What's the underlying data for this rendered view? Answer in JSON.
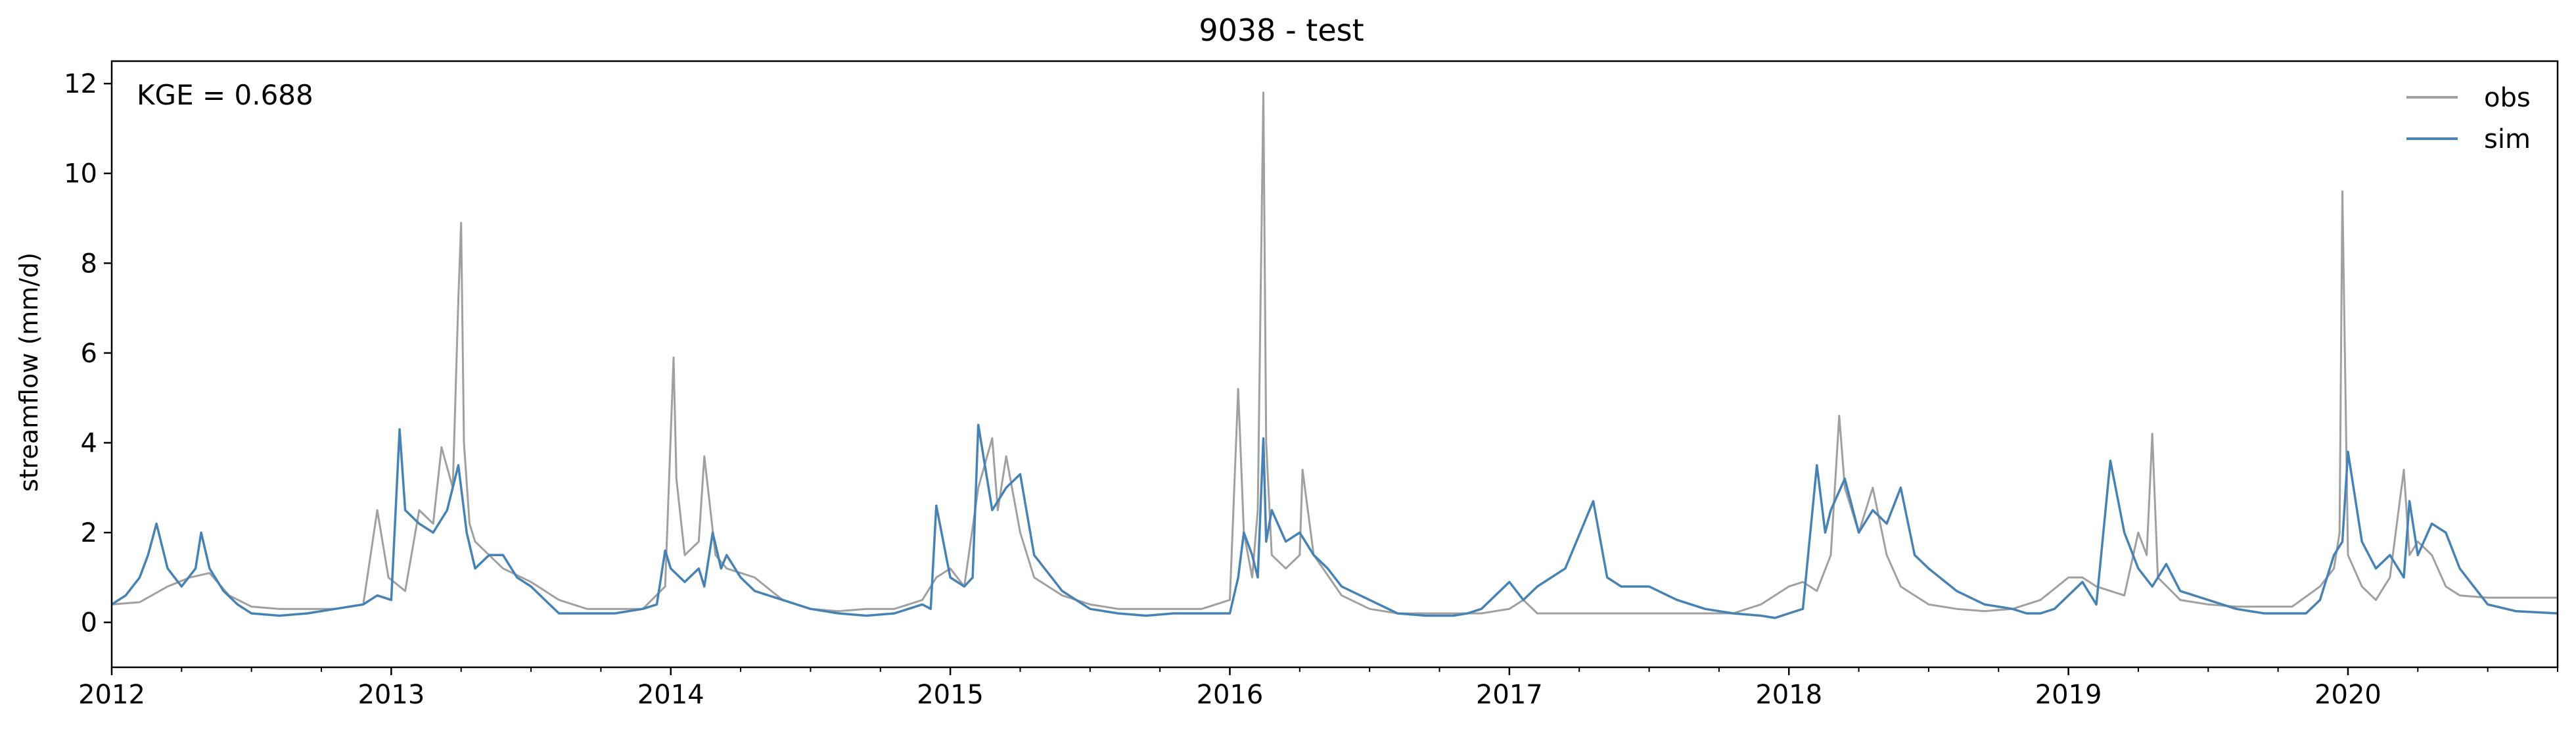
{
  "chart_data": {
    "type": "line",
    "title": "9038 - test",
    "xlabel": "",
    "ylabel": "streamflow (mm/d)",
    "annotation": "KGE = 0.688",
    "xlim": [
      2012.0,
      2020.75
    ],
    "ylim": [
      -1,
      12.5
    ],
    "x_ticks": [
      2012,
      2013,
      2014,
      2015,
      2016,
      2017,
      2018,
      2019,
      2020
    ],
    "x_tick_labels": [
      "2012",
      "2013",
      "2014",
      "2015",
      "2016",
      "2017",
      "2018",
      "2019",
      "2020"
    ],
    "y_ticks": [
      0,
      2,
      4,
      6,
      8,
      10,
      12
    ],
    "y_tick_labels": [
      "0",
      "2",
      "4",
      "6",
      "8",
      "10",
      "12"
    ],
    "legend": {
      "placement": "top-right",
      "entries": [
        "obs",
        "sim"
      ]
    },
    "series": [
      {
        "name": "obs",
        "color": "#a0a0a0",
        "x": [
          2012.0,
          2012.1,
          2012.2,
          2012.28,
          2012.35,
          2012.42,
          2012.5,
          2012.6,
          2012.7,
          2012.8,
          2012.9,
          2012.95,
          2012.99,
          2013.05,
          2013.1,
          2013.15,
          2013.18,
          2013.22,
          2013.24,
          2013.25,
          2013.26,
          2013.28,
          2013.3,
          2013.4,
          2013.5,
          2013.6,
          2013.7,
          2013.8,
          2013.9,
          2013.98,
          2014.01,
          2014.02,
          2014.05,
          2014.1,
          2014.12,
          2014.16,
          2014.2,
          2014.3,
          2014.4,
          2014.5,
          2014.6,
          2014.7,
          2014.8,
          2014.9,
          2014.95,
          2015.0,
          2015.05,
          2015.1,
          2015.15,
          2015.17,
          2015.2,
          2015.25,
          2015.3,
          2015.4,
          2015.5,
          2015.6,
          2015.7,
          2015.8,
          2015.9,
          2016.0,
          2016.03,
          2016.05,
          2016.08,
          2016.1,
          2016.12,
          2016.13,
          2016.15,
          2016.2,
          2016.25,
          2016.26,
          2016.3,
          2016.4,
          2016.5,
          2016.6,
          2016.7,
          2016.8,
          2016.9,
          2017.0,
          2017.05,
          2017.1,
          2017.2,
          2017.3,
          2017.4,
          2017.5,
          2017.6,
          2017.7,
          2017.8,
          2017.9,
          2018.0,
          2018.05,
          2018.1,
          2018.15,
          2018.18,
          2018.2,
          2018.25,
          2018.3,
          2018.35,
          2018.4,
          2018.5,
          2018.6,
          2018.7,
          2018.8,
          2018.9,
          2019.0,
          2019.05,
          2019.1,
          2019.2,
          2019.25,
          2019.28,
          2019.3,
          2019.32,
          2019.4,
          2019.5,
          2019.6,
          2019.7,
          2019.8,
          2019.9,
          2019.95,
          2019.97,
          2019.98,
          2020.0,
          2020.05,
          2020.1,
          2020.15,
          2020.2,
          2020.22,
          2020.25,
          2020.3,
          2020.35,
          2020.4,
          2020.5,
          2020.6,
          2020.75
        ],
        "values": [
          0.4,
          0.45,
          0.8,
          1.0,
          1.1,
          0.6,
          0.35,
          0.3,
          0.3,
          0.3,
          0.4,
          2.5,
          1.0,
          0.7,
          2.5,
          2.2,
          3.9,
          3.0,
          7.2,
          8.9,
          4.0,
          2.2,
          1.8,
          1.2,
          0.9,
          0.5,
          0.3,
          0.3,
          0.3,
          0.8,
          5.9,
          3.2,
          1.5,
          1.8,
          3.7,
          1.5,
          1.2,
          1.0,
          0.5,
          0.3,
          0.25,
          0.3,
          0.3,
          0.5,
          1.0,
          1.2,
          0.8,
          3.0,
          4.1,
          2.5,
          3.7,
          2.0,
          1.0,
          0.6,
          0.4,
          0.3,
          0.3,
          0.3,
          0.3,
          0.5,
          5.2,
          2.0,
          1.0,
          2.5,
          11.8,
          4.0,
          1.5,
          1.2,
          1.5,
          3.4,
          1.5,
          0.6,
          0.3,
          0.2,
          0.2,
          0.2,
          0.2,
          0.3,
          0.5,
          0.2,
          0.2,
          0.2,
          0.2,
          0.2,
          0.2,
          0.2,
          0.2,
          0.4,
          0.8,
          0.9,
          0.7,
          1.5,
          4.6,
          3.0,
          2.0,
          3.0,
          1.5,
          0.8,
          0.4,
          0.3,
          0.25,
          0.3,
          0.5,
          1.0,
          1.0,
          0.8,
          0.6,
          2.0,
          1.5,
          4.2,
          1.0,
          0.5,
          0.4,
          0.35,
          0.35,
          0.35,
          0.8,
          1.2,
          2.0,
          9.6,
          1.5,
          0.8,
          0.5,
          1.0,
          3.4,
          1.5,
          1.8,
          1.5,
          0.8,
          0.6,
          0.55,
          0.55,
          0.55
        ]
      },
      {
        "name": "sim",
        "color": "#4682b4",
        "x": [
          2012.0,
          2012.05,
          2012.1,
          2012.13,
          2012.16,
          2012.2,
          2012.25,
          2012.3,
          2012.32,
          2012.35,
          2012.4,
          2012.45,
          2012.5,
          2012.6,
          2012.7,
          2012.8,
          2012.9,
          2012.95,
          2013.0,
          2013.03,
          2013.05,
          2013.1,
          2013.15,
          2013.2,
          2013.24,
          2013.27,
          2013.3,
          2013.35,
          2013.4,
          2013.45,
          2013.5,
          2013.55,
          2013.6,
          2013.7,
          2013.8,
          2013.9,
          2013.95,
          2013.98,
          2014.0,
          2014.05,
          2014.1,
          2014.12,
          2014.15,
          2014.18,
          2014.2,
          2014.25,
          2014.3,
          2014.4,
          2014.5,
          2014.6,
          2014.7,
          2014.8,
          2014.85,
          2014.9,
          2014.93,
          2014.95,
          2015.0,
          2015.05,
          2015.08,
          2015.1,
          2015.15,
          2015.2,
          2015.25,
          2015.3,
          2015.4,
          2015.5,
          2015.6,
          2015.7,
          2015.8,
          2015.9,
          2016.0,
          2016.03,
          2016.05,
          2016.08,
          2016.1,
          2016.12,
          2016.13,
          2016.15,
          2016.2,
          2016.25,
          2016.3,
          2016.35,
          2016.4,
          2016.5,
          2016.6,
          2016.7,
          2016.8,
          2016.85,
          2016.9,
          2016.95,
          2017.0,
          2017.05,
          2017.1,
          2017.15,
          2017.2,
          2017.3,
          2017.35,
          2017.4,
          2017.5,
          2017.6,
          2017.7,
          2017.8,
          2017.9,
          2017.95,
          2018.0,
          2018.05,
          2018.1,
          2018.13,
          2018.15,
          2018.2,
          2018.25,
          2018.3,
          2018.35,
          2018.4,
          2018.45,
          2018.5,
          2018.6,
          2018.7,
          2018.8,
          2018.85,
          2018.9,
          2018.95,
          2019.0,
          2019.05,
          2019.08,
          2019.1,
          2019.15,
          2019.2,
          2019.25,
          2019.3,
          2019.35,
          2019.4,
          2019.5,
          2019.6,
          2019.7,
          2019.8,
          2019.85,
          2019.9,
          2019.95,
          2019.98,
          2020.0,
          2020.05,
          2020.1,
          2020.15,
          2020.2,
          2020.22,
          2020.25,
          2020.3,
          2020.35,
          2020.4,
          2020.45,
          2020.5,
          2020.6,
          2020.75
        ],
        "values": [
          0.4,
          0.6,
          1.0,
          1.5,
          2.2,
          1.2,
          0.8,
          1.2,
          2.0,
          1.2,
          0.7,
          0.4,
          0.2,
          0.15,
          0.2,
          0.3,
          0.4,
          0.6,
          0.5,
          4.3,
          2.5,
          2.2,
          2.0,
          2.5,
          3.5,
          2.0,
          1.2,
          1.5,
          1.5,
          1.0,
          0.8,
          0.5,
          0.2,
          0.2,
          0.2,
          0.3,
          0.4,
          1.6,
          1.2,
          0.9,
          1.2,
          0.8,
          2.0,
          1.2,
          1.5,
          1.0,
          0.7,
          0.5,
          0.3,
          0.2,
          0.15,
          0.2,
          0.3,
          0.4,
          0.3,
          2.6,
          1.0,
          0.8,
          1.0,
          4.4,
          2.5,
          3.0,
          3.3,
          1.5,
          0.7,
          0.3,
          0.2,
          0.15,
          0.2,
          0.2,
          0.2,
          1.0,
          2.0,
          1.5,
          1.0,
          4.1,
          1.8,
          2.5,
          1.8,
          2.0,
          1.5,
          1.2,
          0.8,
          0.5,
          0.2,
          0.15,
          0.15,
          0.2,
          0.3,
          0.6,
          0.9,
          0.5,
          0.8,
          1.0,
          1.2,
          2.7,
          1.0,
          0.8,
          0.8,
          0.5,
          0.3,
          0.2,
          0.15,
          0.1,
          0.2,
          0.3,
          3.5,
          2.0,
          2.5,
          3.2,
          2.0,
          2.5,
          2.2,
          3.0,
          1.5,
          1.2,
          0.7,
          0.4,
          0.3,
          0.2,
          0.2,
          0.3,
          0.6,
          0.9,
          0.6,
          0.4,
          3.6,
          2.0,
          1.2,
          0.8,
          1.3,
          0.7,
          0.5,
          0.3,
          0.2,
          0.2,
          0.2,
          0.5,
          1.5,
          1.8,
          3.8,
          1.8,
          1.2,
          1.5,
          1.0,
          2.7,
          1.5,
          2.2,
          2.0,
          1.2,
          0.8,
          0.4,
          0.25,
          0.2
        ]
      }
    ]
  }
}
